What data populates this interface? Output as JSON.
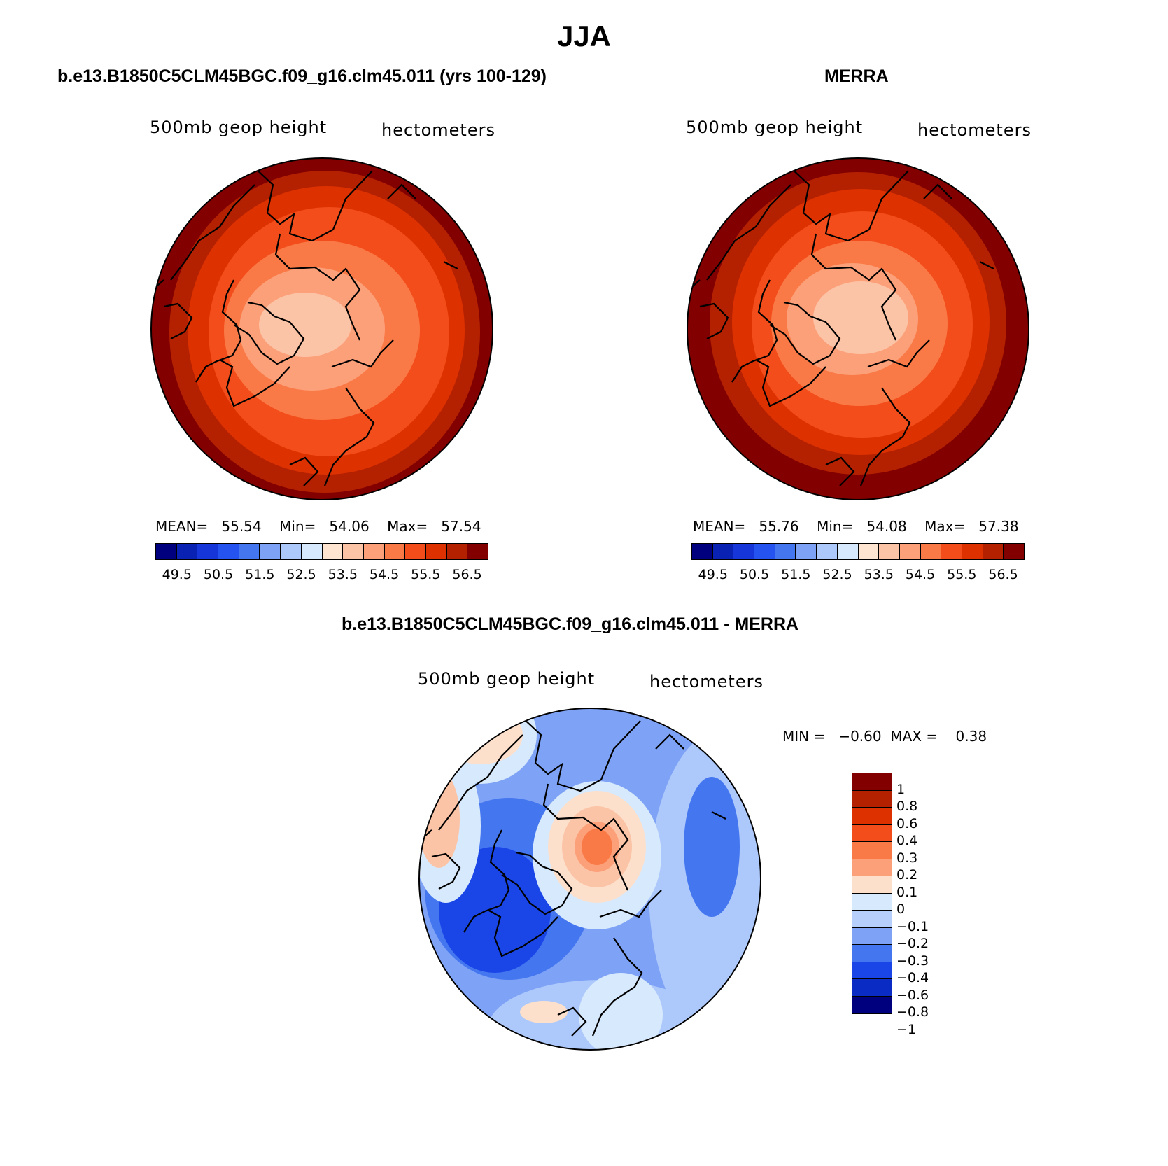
{
  "title": "JJA",
  "panels": {
    "model": {
      "title": "b.e13.B1850C5CLM45BGC.f09_g16.clm45.011 (yrs 100-129)",
      "variable": "500mb geop height",
      "units": "hectometers",
      "stats": {
        "mean_label": "MEAN=",
        "mean": "55.54",
        "min_label": "Min=",
        "min": "54.06",
        "max_label": "Max=",
        "max": "57.54"
      }
    },
    "obs": {
      "title": "MERRA",
      "variable": "500mb geop height",
      "units": "hectometers",
      "stats": {
        "mean_label": "MEAN=",
        "mean": "55.76",
        "min_label": "Min=",
        "min": "54.08",
        "max_label": "Max=",
        "max": "57.38"
      }
    },
    "diff": {
      "title": "b.e13.B1850C5CLM45BGC.f09_g16.clm45.011 - MERRA",
      "variable": "500mb geop height",
      "units": "hectometers",
      "stats": {
        "min_label": "MIN =",
        "min": "−0.60",
        "max_label": "MAX =",
        "max": "0.38"
      }
    }
  },
  "colorbar_abs": {
    "colors": [
      "#00007f",
      "#0a22b4",
      "#1636d9",
      "#2453f0",
      "#4476f0",
      "#7ea2f5",
      "#adc8fb",
      "#d7e9fc",
      "#fde5d2",
      "#fcc4a6",
      "#fca07a",
      "#fa7a47",
      "#f24d1a",
      "#dd3100",
      "#b42100",
      "#820000"
    ],
    "labels": [
      "49.5",
      "50.5",
      "51.5",
      "52.5",
      "53.5",
      "54.5",
      "55.5",
      "56.5"
    ]
  },
  "colorbar_diff": {
    "colors": [
      "#820000",
      "#b42100",
      "#dd3100",
      "#f24d1a",
      "#fa7a47",
      "#fca07a",
      "#fde0cc",
      "#d7e9fc",
      "#b7d0fb",
      "#7ea2f5",
      "#4476f0",
      "#1a46e8",
      "#0a2bc4",
      "#00007f"
    ],
    "labels": [
      "1",
      "0.8",
      "0.6",
      "0.4",
      "0.3",
      "0.2",
      "0.1",
      "0",
      "−0.1",
      "−0.2",
      "−0.3",
      "−0.4",
      "−0.6",
      "−0.8",
      "−1"
    ]
  }
}
